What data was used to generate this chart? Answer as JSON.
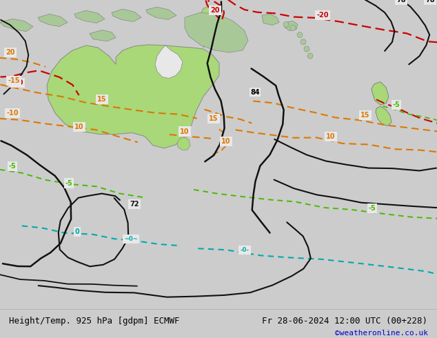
{
  "title_left": "Height/Temp. 925 hPa [gdpm] ECMWF",
  "title_right": "Fr 28-06-2024 12:00 UTC (00+228)",
  "copyright": "©weatheronline.co.uk",
  "bg_color": "#cccccc",
  "map_bg_color": "#e8e8e8",
  "australia_color": "#a8d878",
  "nz_color": "#a8d878",
  "island_color": "#a8c898",
  "footer_bg": "#dddddd",
  "footer_text_color": "#000000",
  "copyright_color": "#0000cc",
  "font_size_footer": 9,
  "font_size_copyright": 8,
  "red": "#cc0000",
  "orange": "#dd7700",
  "green": "#44bb00",
  "cyan": "#00aaaa",
  "black": "#111111"
}
